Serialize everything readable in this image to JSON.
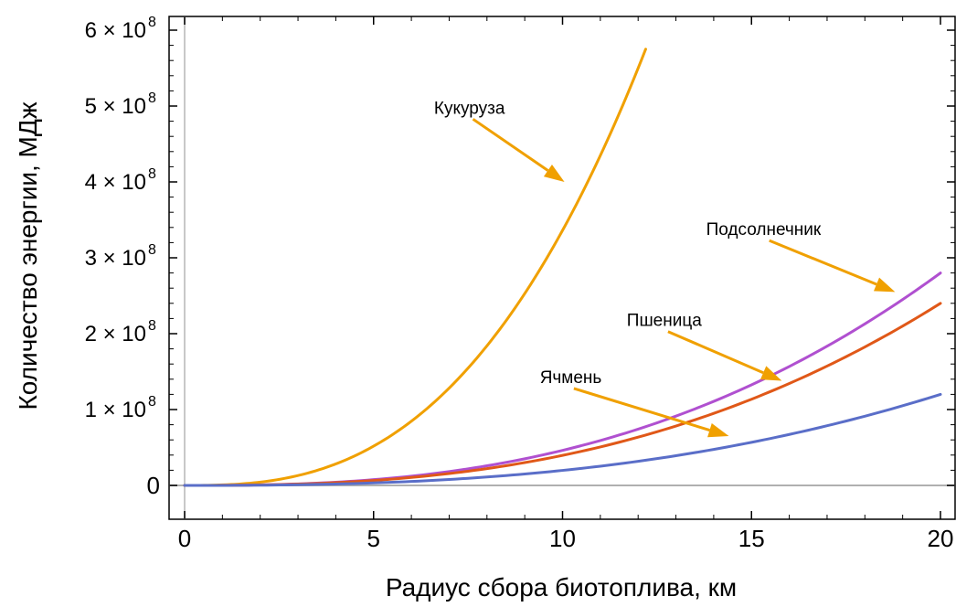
{
  "chart_data": {
    "type": "line",
    "xlabel": "Радиус сбора биотоплива,  км",
    "ylabel": "Количество энергии,  МДж",
    "xlim": [
      0,
      20
    ],
    "ylim": [
      0,
      600000000
    ],
    "x_ticks": [
      "0",
      "5",
      "10",
      "15",
      "20"
    ],
    "y_ticks": [
      {
        "mantissa": "0",
        "exponent": ""
      },
      {
        "mantissa": "1 × 10",
        "exponent": "8"
      },
      {
        "mantissa": "2 × 10",
        "exponent": "8"
      },
      {
        "mantissa": "3 × 10",
        "exponent": "8"
      },
      {
        "mantissa": "4 × 10",
        "exponent": "8"
      },
      {
        "mantissa": "5 × 10",
        "exponent": "8"
      },
      {
        "mantissa": "6 × 10",
        "exponent": "8"
      }
    ],
    "grid": false,
    "series": [
      {
        "name": "Кукуруза",
        "color": "#f0a000",
        "x_max": 12.2,
        "y_at_x_max": 575000000,
        "power": 2.7
      },
      {
        "name": "Подсолнечник",
        "color": "#b050d0",
        "x_max": 20,
        "y_at_x_max": 280000000,
        "power": 2.6
      },
      {
        "name": "Пшеница",
        "color": "#e05818",
        "x_max": 20,
        "y_at_x_max": 240000000,
        "power": 2.6
      },
      {
        "name": "Ячмень",
        "color": "#5a6ec8",
        "x_max": 20,
        "y_at_x_max": 120000000,
        "power": 2.6
      }
    ],
    "annotations": [
      {
        "text": "Кукуруза",
        "series": "Кукуруза",
        "label_x": 6.6,
        "label_y": 490000000,
        "tip_x": 10.05,
        "tip_y": 400000000
      },
      {
        "text": "Подсолнечник",
        "series": "Подсолнечник",
        "label_x": 13.8,
        "label_y": 330000000,
        "tip_x": 18.8,
        "tip_y": 255000000
      },
      {
        "text": "Пшеница",
        "series": "Пшеница",
        "label_x": 11.7,
        "label_y": 210000000,
        "tip_x": 15.8,
        "tip_y": 138000000
      },
      {
        "text": "Ячмень",
        "series": "Ячмень",
        "label_x": 9.4,
        "label_y": 135000000,
        "tip_x": 14.4,
        "tip_y": 65000000
      }
    ],
    "arrow_color": "#f0a000"
  }
}
